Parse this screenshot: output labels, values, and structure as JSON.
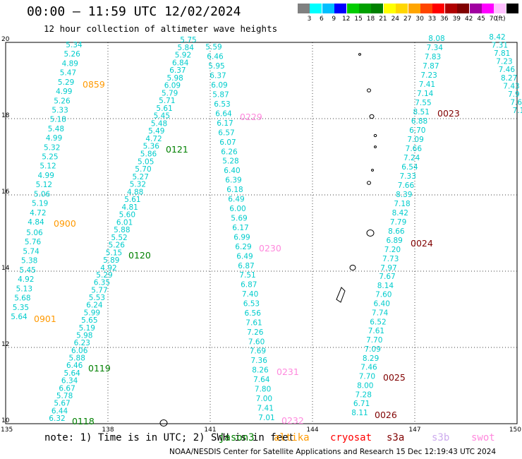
{
  "header": {
    "title": "00:00 – 11:59 UTC 12/02/2024",
    "subtitle": "12 hour collection of altimeter wave heights"
  },
  "legend": {
    "colors": [
      "#808080",
      "#00ffff",
      "#00bfff",
      "#0000ff",
      "#00cd00",
      "#00a000",
      "#008000",
      "#ffff00",
      "#ffd700",
      "#ffa500",
      "#ff4500",
      "#ff0000",
      "#b00000",
      "#800000",
      "#a000a0",
      "#ff00ff",
      "#ffc0ff",
      "#000000"
    ],
    "labels": [
      "3",
      "6",
      "9",
      "12",
      "15",
      "18",
      "21",
      "24",
      "27",
      "30",
      "33",
      "36",
      "39",
      "42",
      "45",
      "70"
    ],
    "unit": "(ft)"
  },
  "axes": {
    "lon_labels": [
      "135",
      "138",
      "141",
      "144",
      "147",
      "150"
    ],
    "lat_labels": [
      "20",
      "18",
      "16",
      "14",
      "12",
      "10"
    ],
    "lon_min": 135,
    "lon_max": 150,
    "lat_min": 10,
    "lat_max": 20
  },
  "tracks": [
    {
      "id": "0859",
      "color": "#ff9900",
      "values": [
        "5.34",
        "5.26",
        "4.89",
        "5.47",
        "5.29",
        "4.99",
        "5.26",
        "5.33",
        "5.18",
        "5.48",
        "4.99",
        "5.32",
        "5.25",
        "5.12",
        "4.99",
        "5.12",
        "5.06",
        "5.19",
        "4.72",
        "4.84"
      ]
    },
    {
      "id": "0900",
      "color": "#ff9900",
      "values": [
        "5.06",
        "5.76",
        "5.74",
        "5.38",
        "5.45",
        "4.92",
        "5.13",
        "5.68",
        "5.35",
        "5.64"
      ]
    },
    {
      "id": "0901",
      "color": "#ff9900",
      "values": []
    },
    {
      "id": "0121",
      "color": "#008000",
      "values": [
        "5.75",
        "5.84",
        "5.92",
        "6.84",
        "6.37",
        "5.98",
        "6.09",
        "5.79",
        "5.71",
        "5.61",
        "5.45",
        "5.48",
        "5.49",
        "4.72",
        "5.36",
        "5.86",
        "5.05",
        "5.70",
        "5.27",
        "5.32",
        "4.88",
        "5.61",
        "4.81",
        "5.60",
        "6.01",
        "5.88",
        "5.52",
        "5.26",
        "5.15",
        "5.89",
        "4.92"
      ]
    },
    {
      "id": "0120",
      "color": "#008000",
      "values": [
        "5.29",
        "6.35",
        "5.77",
        "5.53",
        "6.24",
        "5.99",
        "5.65",
        "5.19",
        "5.98",
        "6.23",
        "6.06",
        "5.88",
        "6.46",
        "5.64",
        "6.34",
        "6.67",
        "5.78",
        "5.67",
        "6.44",
        "6.32"
      ]
    },
    {
      "id": "0119",
      "color": "#008000",
      "values": []
    },
    {
      "id": "0118",
      "color": "#008000",
      "values": []
    },
    {
      "id": "0229",
      "color": "#ff88dd",
      "values": [
        "5.59",
        "6.46",
        "5.95",
        "6.37",
        "6.09",
        "5.87",
        "6.53",
        "6.64",
        "6.17",
        "6.57",
        "6.07",
        "6.26",
        "5.28",
        "6.40",
        "6.39",
        "6.18",
        "6.49",
        "6.00",
        "5.69",
        "6.17",
        "6.99",
        "6.29",
        "6.49",
        "6.87"
      ]
    },
    {
      "id": "0230",
      "color": "#ff88dd",
      "values": [
        "7.51",
        "6.87",
        "7.40",
        "6.53",
        "6.56",
        "7.61",
        "7.26",
        "7.60",
        "7.69",
        "7.36",
        "8.26",
        "7.64",
        "7.80",
        "7.00",
        "7.41",
        "7.01"
      ]
    },
    {
      "id": "0231",
      "color": "#ff88dd",
      "values": []
    },
    {
      "id": "0232",
      "color": "#ff88dd",
      "values": []
    },
    {
      "id": "0023",
      "color": "#800000",
      "values": [
        "8.08",
        "7.34",
        "7.83",
        "7.87",
        "7.23",
        "7.41",
        "7.14",
        "7.55",
        "8.51",
        "6.88",
        "6.70",
        "7.09",
        "7.66",
        "7.24",
        "6.54",
        "7.33",
        "7.66",
        "8.39",
        "7.18",
        "8.42",
        "7.79",
        "8.66",
        "6.89",
        "7.20",
        "7.73",
        "7.97"
      ]
    },
    {
      "id": "0024",
      "color": "#800000",
      "values": [
        "7.67",
        "8.14",
        "7.60",
        "6.40",
        "7.74",
        "6.52",
        "7.61",
        "7.70",
        "7.09",
        "8.29",
        "7.46",
        "7.70",
        "8.00",
        "7.28",
        "6.71",
        "8.11"
      ]
    },
    {
      "id": "0025",
      "color": "#800000",
      "values": []
    },
    {
      "id": "0026",
      "color": "#800000",
      "values": []
    },
    {
      "id": "east",
      "color": "#00cccc",
      "values": [
        "8.42",
        "7.31",
        "7.81",
        "7.23",
        "7.46",
        "8.27",
        "7.43",
        "7.9",
        "7.6",
        "7.1"
      ]
    }
  ],
  "footer": {
    "note": "note:  1) Time is in UTC; 2) SWH is in feet",
    "satellites": [
      {
        "name": "jason3",
        "color": "#008000"
      },
      {
        "name": "altika",
        "color": "#ff9900"
      },
      {
        "name": "cryosat",
        "color": "#ff0000"
      },
      {
        "name": "s3a",
        "color": "#800000"
      },
      {
        "name": "s3b",
        "color": "#ccaaee"
      },
      {
        "name": "swot",
        "color": "#ff88dd"
      }
    ],
    "credit": "NOAA/NESDIS Center for Satellite Applications and Research   15 Dec 12:19:43 UTC 2024"
  }
}
